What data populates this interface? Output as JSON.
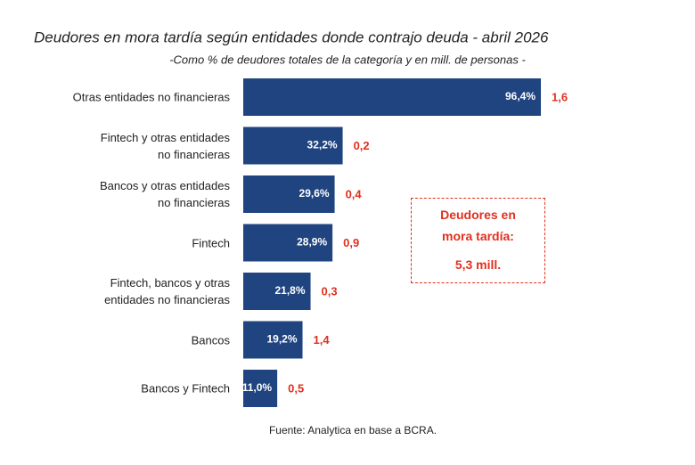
{
  "chart_data": {
    "type": "hbar",
    "title": "Deudores en mora tardía según entidades donde contrajo deuda - abril 2026",
    "subtitle": "-Como % de deudores totales de la categoría y en mill. de personas -",
    "categories": [
      "Otras entidades no financieras",
      "Fintech y otras entidades\nno financieras",
      "Bancos y otras entidades\nno financieras",
      "Fintech",
      "Fintech, bancos y otras\nentidades no financieras",
      "Bancos",
      "Bancos y Fintech"
    ],
    "values": [
      96.4,
      32.2,
      29.6,
      28.9,
      21.8,
      19.2,
      11.0
    ],
    "value_labels": [
      "96,4%",
      "32,2%",
      "29,6%",
      "28,9%",
      "21,8%",
      "19,2%",
      "11,0%"
    ],
    "persons": [
      1.6,
      0.2,
      0.4,
      0.9,
      0.3,
      1.4,
      0.5
    ],
    "persons_labels": [
      "1,6",
      "0,2",
      "0,4",
      "0,9",
      "0,3",
      "1,4",
      "0,5"
    ],
    "color": "#1f4480",
    "label_color": "#e0301e",
    "xlim": [
      0,
      100
    ],
    "annotation": {
      "text": "Deudores en\nmora tardía:",
      "value": 5.3,
      "value_label": "5,3 mill."
    },
    "source": "Fuente: Analytica en base a BCRA."
  }
}
